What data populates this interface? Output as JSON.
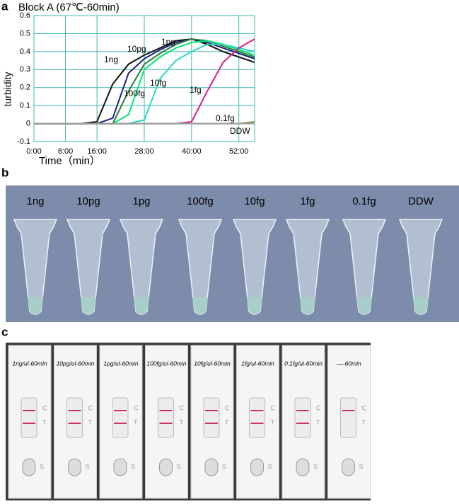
{
  "chart_data": {
    "type": "line",
    "title": "Block A (67℃-60min)",
    "x_label": "Time（min）",
    "y_label": "turbidity",
    "x": [
      0,
      4,
      8,
      12,
      16,
      20,
      24,
      28,
      32,
      36,
      40,
      44,
      48,
      52,
      56
    ],
    "xlim": [
      0,
      56
    ],
    "xticks": [
      {
        "value": 0,
        "label": "0:00"
      },
      {
        "value": 8,
        "label": "8:00"
      },
      {
        "value": 16,
        "label": "16:00"
      },
      {
        "value": 28,
        "label": "28:00"
      },
      {
        "value": 40,
        "label": "40:00"
      },
      {
        "value": 52,
        "label": "52:00"
      }
    ],
    "ylim": [
      -0.1,
      0.6
    ],
    "yticks": [
      -0.1,
      0,
      0.1,
      0.2,
      0.3,
      0.4,
      0.5,
      0.6
    ],
    "grid": true,
    "grid_color": "#3cb8b0",
    "series": [
      {
        "name": "1ng",
        "color": "#111111",
        "values": [
          0,
          0,
          0,
          0,
          0.01,
          0.22,
          0.33,
          0.38,
          0.42,
          0.46,
          0.47,
          0.44,
          0.4,
          0.37,
          0.34
        ]
      },
      {
        "name": "10pg",
        "color": "#1a237e",
        "values": [
          0,
          0,
          0,
          0,
          0,
          0.03,
          0.28,
          0.36,
          0.41,
          0.45,
          0.47,
          0.45,
          0.42,
          0.39,
          0.36
        ]
      },
      {
        "name": "1pg",
        "color": "#2e7d32",
        "values": [
          0,
          0,
          0,
          0,
          0,
          0,
          0.18,
          0.33,
          0.39,
          0.44,
          0.47,
          0.46,
          0.43,
          0.4,
          0.37
        ]
      },
      {
        "name": "100fg",
        "color": "#00e676",
        "values": [
          0,
          0,
          0,
          0,
          0,
          0,
          0.05,
          0.3,
          0.37,
          0.42,
          0.45,
          0.46,
          0.44,
          0.41,
          0.38
        ]
      },
      {
        "name": "10fg",
        "color": "#26d9c4",
        "values": [
          0,
          0,
          0,
          0,
          0,
          0,
          0,
          0.02,
          0.25,
          0.35,
          0.4,
          0.44,
          0.44,
          0.42,
          0.4
        ]
      },
      {
        "name": "1fg",
        "color": "#d81b8c",
        "values": [
          0,
          0,
          0,
          0,
          0,
          0,
          0,
          0,
          0,
          0,
          0.01,
          0.18,
          0.34,
          0.42,
          0.47
        ]
      },
      {
        "name": "0.1fg",
        "color": "#8d8d3a",
        "values": [
          0,
          0,
          0,
          0,
          0,
          0,
          0,
          0,
          0,
          0,
          0,
          0,
          0,
          0,
          0.01
        ]
      },
      {
        "name": "DDW",
        "color": "#9e9e9e",
        "values": [
          0,
          0,
          0,
          0,
          0,
          0,
          0,
          0,
          0,
          0,
          0,
          0,
          0,
          0,
          0
        ]
      }
    ]
  },
  "panels": {
    "a": "a",
    "b": "b",
    "c": "c"
  },
  "tubes": [
    "1ng",
    "10pg",
    "1pg",
    "100fg",
    "10fg",
    "1fg",
    "0.1fg",
    "DDW"
  ],
  "strip_marks": {
    "c": "C",
    "t": "T",
    "s": "S"
  },
  "strips": [
    {
      "label": "1ng/ul-60min",
      "test_line": true
    },
    {
      "label": "10pg/ul-60min",
      "test_line": true
    },
    {
      "label": "1pg/ul-60min",
      "test_line": true
    },
    {
      "label": "100fg/ul-60min",
      "test_line": true
    },
    {
      "label": "10fg/ul-60min",
      "test_line": true
    },
    {
      "label": "1fg/ul-60min",
      "test_line": true
    },
    {
      "label": "0.1fg/ul-60min",
      "test_line": true
    },
    {
      "label": "—-60min",
      "test_line": false
    }
  ]
}
